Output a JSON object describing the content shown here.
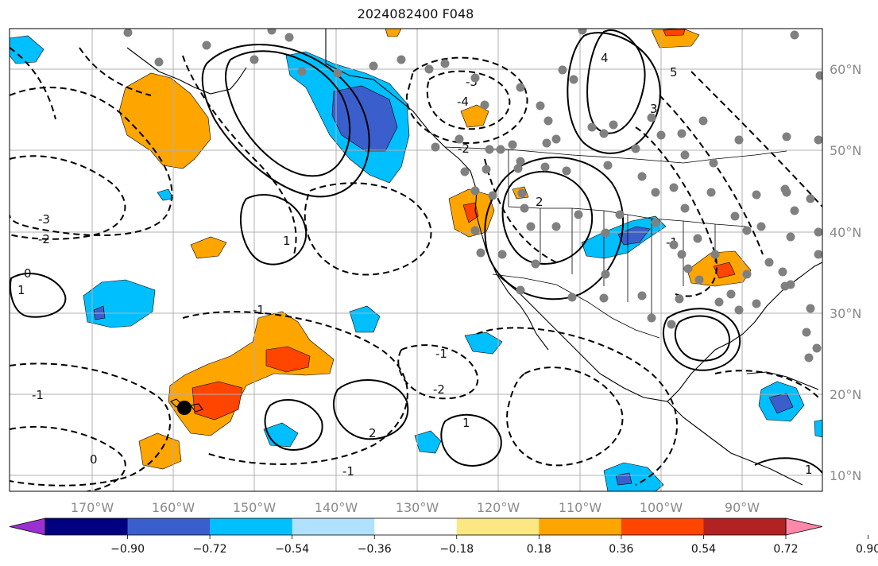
{
  "title": "2024082400 F048",
  "map": {
    "lon_range": [
      -180,
      -82
    ],
    "lat_range": [
      7.9,
      66
    ],
    "lon_ticks": [
      "170°W",
      "160°W",
      "150°W",
      "140°W",
      "130°W",
      "120°W",
      "110°W",
      "100°W",
      "90°W"
    ],
    "lat_ticks": [
      "60°N",
      "50°N",
      "40°N",
      "30°N",
      "20°N",
      "10°N"
    ],
    "grid": true,
    "contour_labels": [
      "-3",
      "-2",
      "-1",
      "-1",
      "0",
      "1",
      "1",
      "2",
      "-4",
      "-3",
      "-2",
      "-1",
      "1",
      "2",
      "3",
      "4",
      "5",
      "-1",
      "-2",
      "-1",
      "0",
      "1"
    ]
  },
  "colorbar": {
    "ticks": [
      "−0.90",
      "−0.72",
      "−0.54",
      "−0.36",
      "−0.18",
      "0.18",
      "0.36",
      "0.54",
      "0.72",
      "0.90"
    ],
    "colors": [
      "#9b30d0",
      "#000080",
      "#3a5fcd",
      "#00bfff",
      "#b0e2ff",
      "#ffffff",
      "#fce883",
      "#ffa500",
      "#ff4500",
      "#b22222",
      "#ff88aa"
    ],
    "extend": "both"
  },
  "marker_colors": {
    "station": "#808080",
    "center": "#000000"
  }
}
